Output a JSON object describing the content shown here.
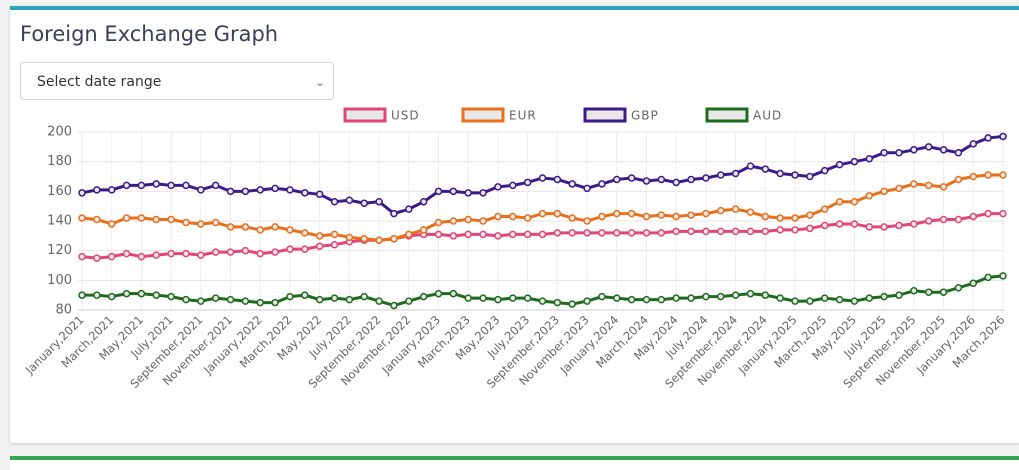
{
  "header": {
    "title": "Foreign Exchange Graph"
  },
  "select": {
    "placeholder": "Select date range"
  },
  "chart_data": {
    "type": "line",
    "categories": [
      "January,2021",
      null,
      "March,2021",
      null,
      "May,2021",
      null,
      "July,2021",
      null,
      "September,2021",
      null,
      "November,2021",
      null,
      "January,2022",
      null,
      "March,2022",
      null,
      "May,2022",
      null,
      "July,2022",
      null,
      "September,2022",
      null,
      "November,2022",
      null,
      "January,2023",
      null,
      "March,2023",
      null,
      "May,2023",
      null,
      "July,2023",
      null,
      "September,2023",
      null,
      "November,2023",
      null,
      "January,2024",
      null,
      "March,2024",
      null,
      "May,2024",
      null,
      "July,2024",
      null,
      "September,2024",
      null,
      "November,2024",
      null,
      "January,2025",
      null,
      "March,2025",
      null,
      "May,2025",
      null,
      "July,2025",
      null,
      "September,2025",
      null,
      "November,2025",
      null,
      "January,2026",
      null,
      "March,2026"
    ],
    "series": [
      {
        "name": "USD",
        "color": "#e0457b",
        "values": [
          116,
          115,
          116,
          118,
          116,
          117,
          118,
          118,
          117,
          119,
          119,
          120,
          118,
          119,
          121,
          121,
          123,
          124,
          126,
          127,
          127,
          128,
          130,
          131,
          131,
          130,
          131,
          131,
          130,
          131,
          131,
          131,
          132,
          132,
          132,
          132,
          132,
          132,
          132,
          132,
          133,
          133,
          133,
          133,
          133,
          133,
          133,
          134,
          134,
          135,
          137,
          138,
          138,
          136,
          136,
          137,
          138,
          140,
          141,
          141,
          143,
          145,
          145
        ]
      },
      {
        "name": "EUR",
        "color": "#e8701a",
        "values": [
          142,
          141,
          138,
          142,
          142,
          141,
          141,
          139,
          138,
          139,
          136,
          136,
          134,
          136,
          134,
          132,
          130,
          131,
          129,
          128,
          127,
          128,
          131,
          134,
          139,
          140,
          141,
          140,
          143,
          143,
          142,
          145,
          145,
          142,
          140,
          143,
          145,
          145,
          143,
          144,
          143,
          144,
          145,
          147,
          148,
          146,
          143,
          142,
          142,
          144,
          148,
          153,
          153,
          157,
          160,
          162,
          165,
          164,
          163,
          168,
          170,
          171,
          171
        ]
      },
      {
        "name": "GBP",
        "color": "#3b1a8a",
        "values": [
          159,
          161,
          161,
          164,
          164,
          165,
          164,
          164,
          161,
          164,
          160,
          160,
          161,
          162,
          161,
          159,
          158,
          153,
          154,
          152,
          153,
          145,
          148,
          153,
          160,
          160,
          159,
          159,
          163,
          164,
          166,
          169,
          168,
          165,
          162,
          165,
          168,
          169,
          167,
          168,
          166,
          168,
          169,
          171,
          172,
          177,
          175,
          172,
          171,
          170,
          174,
          178,
          180,
          182,
          186,
          186,
          188,
          190,
          188,
          186,
          192,
          196,
          197
        ]
      },
      {
        "name": "AUD",
        "color": "#1e6b1e",
        "values": [
          90,
          90,
          89,
          91,
          91,
          90,
          89,
          87,
          86,
          88,
          87,
          86,
          85,
          85,
          89,
          90,
          87,
          88,
          87,
          89,
          86,
          83,
          86,
          89,
          91,
          91,
          88,
          88,
          87,
          88,
          88,
          86,
          85,
          84,
          86,
          89,
          88,
          87,
          87,
          87,
          88,
          88,
          89,
          89,
          90,
          91,
          90,
          88,
          86,
          86,
          88,
          87,
          86,
          88,
          89,
          90,
          93,
          92,
          92,
          95,
          98,
          102,
          103
        ]
      }
    ],
    "ylim": [
      80,
      200
    ],
    "yticks": [
      80,
      100,
      120,
      140,
      160,
      180,
      200
    ],
    "grid": true,
    "legend": "top"
  }
}
